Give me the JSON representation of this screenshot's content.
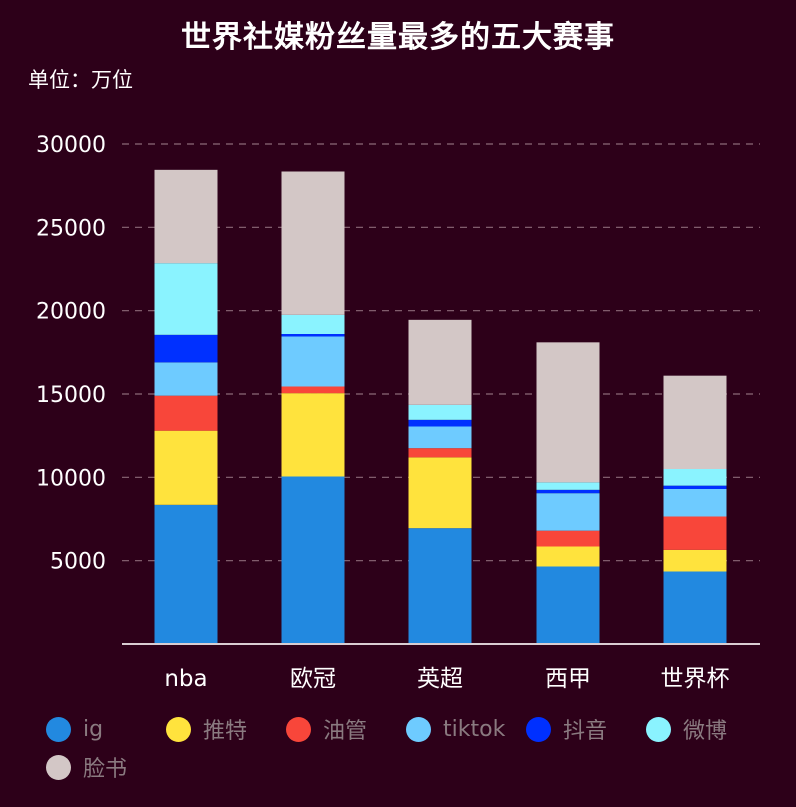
{
  "chart_data": {
    "type": "bar",
    "stacked": true,
    "title": "世界社媒粉丝量最多的五大赛事",
    "unit_label": "单位：万位",
    "categories": [
      "nba",
      "欧冠",
      "英超",
      "西甲",
      "世界杯"
    ],
    "ylim": [
      0,
      30000
    ],
    "yticks": [
      5000,
      10000,
      15000,
      20000,
      25000,
      30000
    ],
    "grid": true,
    "legend_position": "bottom",
    "series": [
      {
        "name": "ig",
        "color": "#2289e0",
        "values": [
          8350,
          10050,
          6950,
          4650,
          4350
        ]
      },
      {
        "name": "推特",
        "color": "#ffe33d",
        "values": [
          4450,
          5000,
          4250,
          1200,
          1300
        ]
      },
      {
        "name": "油管",
        "color": "#f8463a",
        "values": [
          2100,
          400,
          550,
          950,
          2000
        ]
      },
      {
        "name": "tiktok",
        "color": "#6ecbff",
        "values": [
          2000,
          3000,
          1300,
          2250,
          1650
        ]
      },
      {
        "name": "抖音",
        "color": "#0030ff",
        "values": [
          1650,
          150,
          400,
          200,
          200
        ]
      },
      {
        "name": "微博",
        "color": "#8af3ff",
        "values": [
          4300,
          1150,
          900,
          450,
          1000
        ]
      },
      {
        "name": "脸书",
        "color": "#d3c7c6",
        "values": [
          5600,
          8600,
          5100,
          8400,
          5600
        ]
      }
    ]
  }
}
